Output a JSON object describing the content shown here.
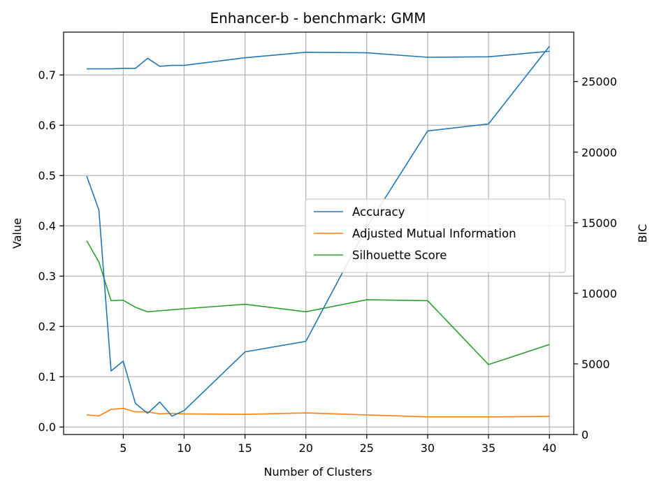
{
  "chart_data": {
    "type": "line",
    "title": "Enhancer-b - benchmark: GMM",
    "xlabel": "Number of Clusters",
    "ylabel": "Value",
    "y2label": "BIC",
    "xlim": [
      0.1,
      42.0
    ],
    "ylim": [
      -0.015,
      0.785
    ],
    "y2lim": [
      0,
      28500
    ],
    "xticks": [
      5,
      10,
      15,
      20,
      25,
      30,
      35,
      40
    ],
    "yticks": [
      0.0,
      0.1,
      0.2,
      0.3,
      0.4,
      0.5,
      0.6,
      0.7
    ],
    "y2ticks": [
      0,
      5000,
      10000,
      15000,
      20000,
      25000
    ],
    "grid": true,
    "legend_position": "center-right",
    "series": [
      {
        "name": "Accuracy",
        "axis": "left",
        "color": "#1f77b4",
        "x": [
          2,
          3,
          4,
          5,
          6,
          7,
          8,
          9,
          10,
          15,
          20,
          25,
          30,
          35,
          40
        ],
        "values": [
          0.712,
          0.712,
          0.712,
          0.713,
          0.713,
          0.733,
          0.717,
          0.719,
          0.719,
          0.734,
          0.745,
          0.744,
          0.735,
          0.736,
          0.747
        ]
      },
      {
        "name": "Adjusted Mutual Information",
        "axis": "left",
        "color": "#ff7f0e",
        "x": [
          2,
          3,
          4,
          5,
          6,
          7,
          8,
          9,
          10,
          15,
          20,
          25,
          30,
          35,
          40
        ],
        "values": [
          0.024,
          0.022,
          0.035,
          0.037,
          0.03,
          0.03,
          0.026,
          0.027,
          0.026,
          0.025,
          0.028,
          0.024,
          0.02,
          0.02,
          0.021
        ]
      },
      {
        "name": "Silhouette Score",
        "axis": "left",
        "color": "#2ca02c",
        "x": [
          2,
          3,
          4,
          5,
          6,
          7,
          8,
          9,
          10,
          15,
          20,
          25,
          30,
          35,
          40
        ],
        "values": [
          0.37,
          0.328,
          0.251,
          0.252,
          0.238,
          0.229,
          0.231,
          0.233,
          0.235,
          0.244,
          0.229,
          0.253,
          0.251,
          0.124,
          0.164
        ]
      },
      {
        "axis": "right",
        "color": "#1f77b4",
        "x": [
          2,
          3,
          4,
          5,
          6,
          7,
          8,
          9,
          10,
          15,
          20,
          25,
          30,
          35,
          40
        ],
        "values": [
          18300,
          15900,
          4500,
          5200,
          2200,
          1500,
          2300,
          1300,
          1700,
          5850,
          6600,
          14700,
          21500,
          22000,
          27500
        ]
      }
    ]
  }
}
